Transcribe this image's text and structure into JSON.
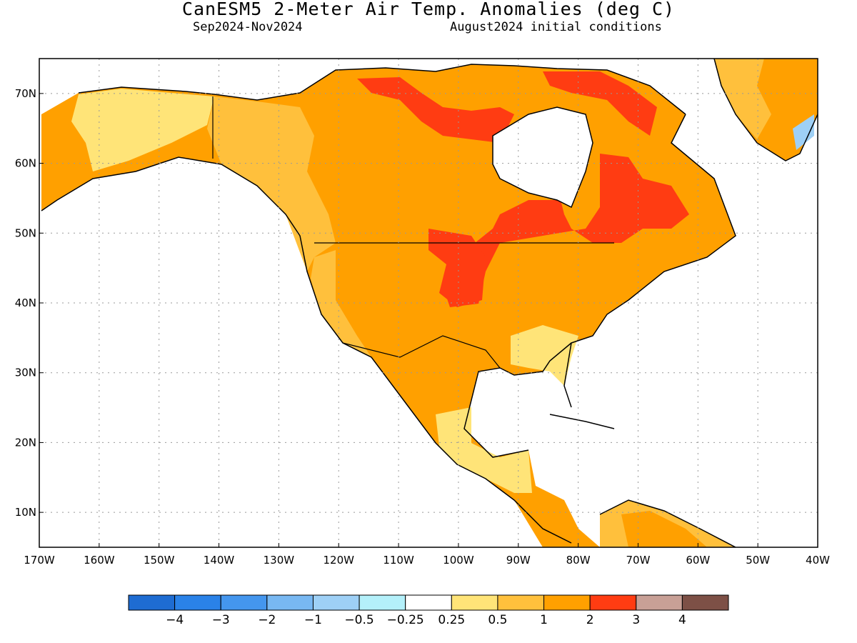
{
  "header": {
    "title": "CanESM5 2-Meter Air Temp. Anomalies (deg C)",
    "period": "Sep2024-Nov2024",
    "init": "August2024 initial conditions"
  },
  "map": {
    "lon_range": [
      -170,
      -40
    ],
    "lat_range": [
      5,
      75
    ],
    "lon_ticks": [
      {
        "lon": -170,
        "label": "170W"
      },
      {
        "lon": -160,
        "label": "160W"
      },
      {
        "lon": -150,
        "label": "150W"
      },
      {
        "lon": -140,
        "label": "140W"
      },
      {
        "lon": -130,
        "label": "130W"
      },
      {
        "lon": -120,
        "label": "120W"
      },
      {
        "lon": -110,
        "label": "110W"
      },
      {
        "lon": -100,
        "label": "100W"
      },
      {
        "lon": -90,
        "label": "90W"
      },
      {
        "lon": -80,
        "label": "80W"
      },
      {
        "lon": -70,
        "label": "70W"
      },
      {
        "lon": -60,
        "label": "60W"
      },
      {
        "lon": -50,
        "label": "50W"
      },
      {
        "lon": -40,
        "label": "40W"
      }
    ],
    "lat_ticks": [
      {
        "lat": 70,
        "label": "70N"
      },
      {
        "lat": 60,
        "label": "60N"
      },
      {
        "lat": 50,
        "label": "50N"
      },
      {
        "lat": 40,
        "label": "40N"
      },
      {
        "lat": 30,
        "label": "30N"
      },
      {
        "lat": 20,
        "label": "20N"
      },
      {
        "lat": 10,
        "label": "10N"
      }
    ],
    "grid": "dotted"
  },
  "colorbar": {
    "colors": [
      "#1e6cd2",
      "#2a82e8",
      "#4496ee",
      "#78b8f2",
      "#9ed0f6",
      "#b4f0fa",
      "#ffffff",
      "#ffe478",
      "#ffc03c",
      "#ffa000",
      "#ff3c12",
      "#c8a096",
      "#7d5046"
    ],
    "labels": [
      "-4",
      "-3",
      "-2",
      "-1",
      "-0.5",
      "-0.25",
      "0.25",
      "0.5",
      "1",
      "2",
      "3",
      "4"
    ]
  },
  "regions": {
    "land_yellow": "#ffe478",
    "land_orange_light": "#ffc03c",
    "land_orange": "#ffa000",
    "land_red": "#ff3c12",
    "greenland_blue": "#9ed0f6"
  }
}
